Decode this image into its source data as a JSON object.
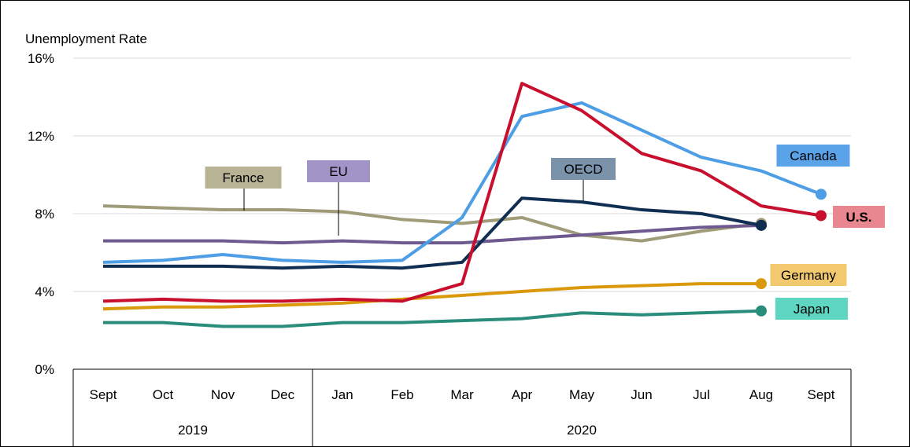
{
  "chart_data": {
    "type": "line",
    "title": "",
    "ylabel": "Unemployment Rate",
    "xlabel": "",
    "ylim": [
      0,
      16
    ],
    "yticks": [
      0,
      4,
      8,
      12,
      16
    ],
    "ytick_labels": [
      "0%",
      "4%",
      "8%",
      "12%",
      "16%"
    ],
    "categories": [
      "Sept",
      "Oct",
      "Nov",
      "Dec",
      "Jan",
      "Feb",
      "Mar",
      "Apr",
      "May",
      "Jun",
      "Jul",
      "Aug",
      "Sept"
    ],
    "year_groups": [
      {
        "label": "2019",
        "from": 0,
        "to": 3
      },
      {
        "label": "2020",
        "from": 4,
        "to": 12
      }
    ],
    "grid": true,
    "series": [
      {
        "name": "Canada",
        "color": "#4E9EE6",
        "label_bg": "#5BA3E8",
        "label_color": "#000000",
        "values": [
          5.5,
          5.6,
          5.9,
          5.6,
          5.5,
          5.6,
          7.8,
          13.0,
          13.7,
          12.3,
          10.9,
          10.2,
          9.0
        ]
      },
      {
        "name": "U.S.",
        "color": "#C8102E",
        "label_bg": "#E8878F",
        "label_color": "#000000",
        "label_bold": true,
        "values": [
          3.5,
          3.6,
          3.5,
          3.5,
          3.6,
          3.5,
          4.4,
          14.7,
          13.3,
          11.1,
          10.2,
          8.4,
          7.9
        ]
      },
      {
        "name": "France",
        "color": "#A09B78",
        "label_bg": "#B8B395",
        "label_color": "#000000",
        "values": [
          8.4,
          8.3,
          8.2,
          8.2,
          8.1,
          7.7,
          7.5,
          7.8,
          6.9,
          6.6,
          7.1,
          7.5,
          null
        ]
      },
      {
        "name": "EU",
        "color": "#6E5A8E",
        "label_bg": "#A394C8",
        "label_color": "#000000",
        "values": [
          6.6,
          6.6,
          6.6,
          6.5,
          6.6,
          6.5,
          6.5,
          6.7,
          6.9,
          7.1,
          7.3,
          7.4,
          null
        ]
      },
      {
        "name": "OECD",
        "color": "#0F2E52",
        "label_bg": "#7A93AB",
        "label_color": "#000000",
        "values": [
          5.3,
          5.3,
          5.3,
          5.2,
          5.3,
          5.2,
          5.5,
          8.8,
          8.6,
          8.2,
          8.0,
          7.4,
          null
        ]
      },
      {
        "name": "Germany",
        "color": "#D9990B",
        "label_bg": "#F2C96E",
        "label_color": "#000000",
        "values": [
          3.1,
          3.2,
          3.2,
          3.3,
          3.4,
          3.6,
          3.8,
          4.0,
          4.2,
          4.3,
          4.4,
          4.4,
          null
        ]
      },
      {
        "name": "Japan",
        "color": "#2A8C7A",
        "label_bg": "#5ED6C2",
        "label_color": "#000000",
        "values": [
          2.4,
          2.4,
          2.2,
          2.2,
          2.4,
          2.4,
          2.5,
          2.6,
          2.9,
          2.8,
          2.9,
          3.0,
          null
        ]
      }
    ]
  }
}
